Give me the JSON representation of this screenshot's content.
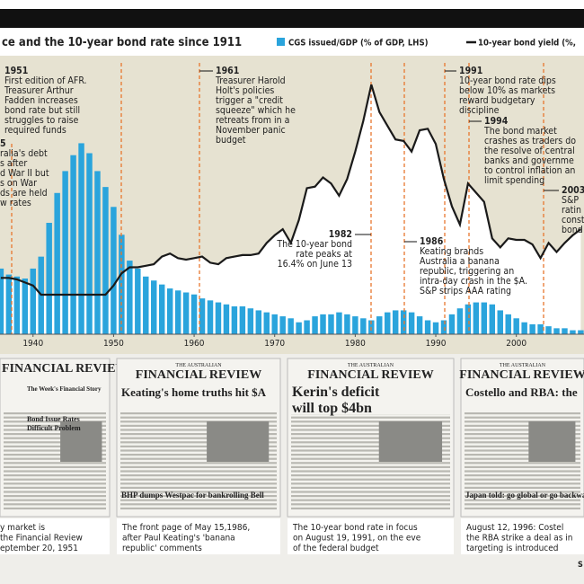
{
  "chart_data": {
    "type": "combo",
    "title": "ce and the 10-year bond rate since 1911",
    "x": [
      1936,
      1937,
      1938,
      1939,
      1940,
      1941,
      1942,
      1943,
      1944,
      1945,
      1946,
      1947,
      1948,
      1949,
      1950,
      1951,
      1952,
      1953,
      1954,
      1955,
      1956,
      1957,
      1958,
      1959,
      1960,
      1961,
      1962,
      1963,
      1964,
      1965,
      1966,
      1967,
      1968,
      1969,
      1970,
      1971,
      1972,
      1973,
      1974,
      1975,
      1976,
      1977,
      1978,
      1979,
      1980,
      1981,
      1982,
      1983,
      1984,
      1985,
      1986,
      1987,
      1988,
      1989,
      1990,
      1991,
      1992,
      1993,
      1994,
      1995,
      1996,
      1997,
      1998,
      1999,
      2000,
      2001,
      2002,
      2003,
      2004,
      2005,
      2006,
      2007,
      2008
    ],
    "xlim": [
      1935.9,
      2008.4
    ],
    "xticks": [
      1940,
      1950,
      1960,
      1970,
      1980,
      1990,
      2000
    ],
    "ylim": [
      0,
      140
    ],
    "y2lim": [
      0,
      18.3
    ],
    "series": [
      {
        "name": "CGS issued/GDP (% of GDP, LHS)",
        "type": "bar",
        "color": "#2aa4dc",
        "values": [
          33,
          30,
          29,
          28,
          33,
          39,
          56,
          71,
          82,
          90,
          96,
          91,
          82,
          74,
          64,
          50,
          37,
          33,
          29,
          27,
          25,
          23,
          22,
          21,
          20,
          18,
          17,
          16,
          15,
          14,
          14,
          13,
          12,
          11,
          10,
          9,
          8,
          6,
          7,
          9,
          10,
          10,
          11,
          10,
          9,
          8,
          7,
          9,
          11,
          12,
          12,
          11,
          9,
          7,
          6,
          7,
          10,
          13,
          15,
          16,
          16,
          15,
          12,
          10,
          8,
          6,
          5,
          5,
          4,
          3,
          3,
          2,
          2
        ]
      },
      {
        "name": "10-year bond yield (%,",
        "type": "line",
        "axis": "y2",
        "color": "#1a1a1a",
        "values": [
          3.7,
          3.7,
          3.6,
          3.4,
          3.2,
          2.6,
          2.6,
          2.6,
          2.6,
          2.6,
          2.6,
          2.6,
          2.6,
          2.6,
          3.2,
          4.0,
          4.4,
          4.4,
          4.5,
          4.6,
          5.1,
          5.3,
          5.0,
          4.9,
          5.0,
          5.1,
          4.7,
          4.6,
          5.0,
          5.1,
          5.2,
          5.2,
          5.3,
          6.0,
          6.5,
          6.9,
          6.0,
          7.5,
          9.6,
          9.7,
          10.3,
          9.9,
          9.1,
          10.2,
          12.0,
          14.0,
          16.4,
          14.6,
          13.7,
          12.8,
          12.7,
          12.0,
          13.4,
          13.5,
          12.5,
          10.2,
          8.4,
          7.2,
          9.9,
          9.3,
          8.7,
          6.3,
          5.7,
          6.3,
          6.2,
          6.2,
          5.9,
          5.0,
          6.0,
          5.4,
          6.0,
          6.5,
          6.9
        ]
      }
    ],
    "annotations": [
      {
        "label": "5",
        "lines": [
          "ralia's debt",
          "s after",
          "d War II but",
          "s on War",
          "ds are held",
          "w rates"
        ]
      },
      {
        "label": "1951",
        "lines": [
          "First edition of AFR.",
          "Treasurer Arthur",
          "Fadden increases",
          "bond rate but still",
          "struggles to raise",
          "required funds"
        ]
      },
      {
        "label": "1961",
        "lines": [
          "Treasurer Harold",
          "Holt's policies",
          "trigger a \"credit",
          "squeeze\" which he",
          "retreats from in a",
          "November panic",
          "budget"
        ]
      },
      {
        "label": "1982",
        "lines": [
          "The 10-year bond",
          "rate peaks at",
          "16.4% on June 13"
        ]
      },
      {
        "label": "1986",
        "lines": [
          "Keating brands",
          "Australia a banana",
          "republic, triggering an",
          "intra-day crash in the $A.",
          "S&P strips AAA rating"
        ]
      },
      {
        "label": "1991",
        "lines": [
          "10-year bond rate dips",
          "below 10% as markets",
          "reward budgetary",
          "discipline"
        ]
      },
      {
        "label": "1994",
        "lines": [
          "The bond market",
          "crashes as traders do",
          "the resolve of central",
          "banks and governme",
          "to control inflation an",
          "limit spending"
        ]
      },
      {
        "label": "2003",
        "lines": [
          "S&P",
          "ratin",
          "const",
          "bond"
        ]
      }
    ]
  },
  "front_pages": [
    {
      "texts": [
        "FINANCIAL REVIEW",
        "The Week's Financial Story",
        "Bond Issue Rates",
        "Difficult Problem"
      ],
      "caption": [
        "y market is",
        "the Financial Review",
        "eptember 20, 1951"
      ]
    },
    {
      "texts": [
        "THE AUSTRALIAN",
        "FINANCIAL REVIEW",
        "Keating's home truths hit $A",
        "BHP dumps Westpac for bankrolling Bell"
      ],
      "caption": [
        "The front page of May 15,1986,",
        "after Paul Keating's 'banana",
        "republic' comments"
      ]
    },
    {
      "texts": [
        "THE AUSTRALIAN",
        "FINANCIAL REVIEW",
        "Kerin's deficit",
        "will top $4bn"
      ],
      "caption": [
        "The 10-year bond rate in focus",
        "on August 19, 1991, on the eve",
        "of the federal budget"
      ]
    },
    {
      "texts": [
        "THE AUSTRALIAN",
        "FINANCIAL REVIEW",
        "Costello and RBA: the",
        "Japan told: go global or go backward"
      ],
      "caption": [
        "August 12, 1996: Costel",
        "the RBA strike a deal as in",
        "targeting is introduced"
      ]
    }
  ],
  "source": "S"
}
